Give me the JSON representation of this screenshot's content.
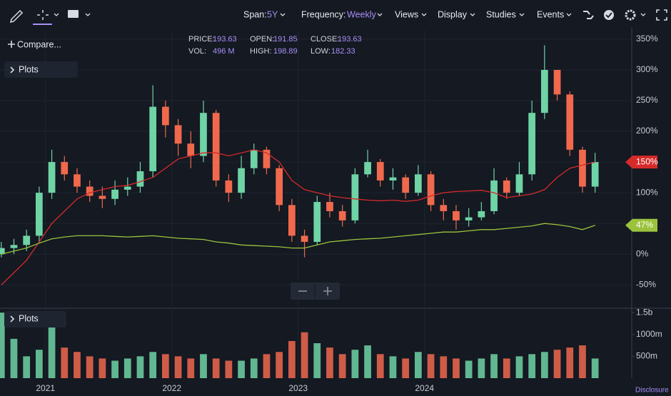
{
  "toolbar": {
    "span_label": "Span:",
    "span": "5Y",
    "frequency_label": "Frequency:",
    "frequency": "Weekly",
    "menus": [
      "Views",
      "Display",
      "Studies",
      "Events"
    ]
  },
  "side": {
    "compare": "Compare...",
    "plots": "Plots",
    "volume_plots": "Plots"
  },
  "info": {
    "price_label": "PRICE:",
    "price": "193.63",
    "open_label": "OPEN:",
    "open": "191.85",
    "close_label": "CLOSE:",
    "close": "193.63",
    "vol_label": "VOL:",
    "vol": "496 M",
    "high_label": "HIGH:",
    "high": "198.89",
    "low_label": "LOW:",
    "low": "182.33"
  },
  "disclosure": "Disclosure",
  "chart_data": {
    "type": "candlestick",
    "x": [
      2020.65,
      2020.75,
      2020.85,
      2020.95,
      2021.05,
      2021.15,
      2021.25,
      2021.35,
      2021.45,
      2021.55,
      2021.65,
      2021.75,
      2021.85,
      2021.95,
      2022.05,
      2022.15,
      2022.25,
      2022.35,
      2022.45,
      2022.55,
      2022.65,
      2022.75,
      2022.85,
      2022.95,
      2023.05,
      2023.15,
      2023.25,
      2023.35,
      2023.45,
      2023.55,
      2023.65,
      2023.75,
      2023.85,
      2023.95,
      2024.05,
      2024.15,
      2024.25,
      2024.35,
      2024.45,
      2024.55,
      2024.65,
      2024.75,
      2024.85,
      2024.95,
      2025.05,
      2025.15,
      2025.25,
      2025.35
    ],
    "open": [
      0,
      10,
      15,
      30,
      100,
      150,
      130,
      110,
      95,
      90,
      105,
      110,
      135,
      240,
      210,
      180,
      160,
      230,
      120,
      100,
      140,
      170,
      140,
      80,
      30,
      20,
      85,
      70,
      55,
      130,
      150,
      120,
      125,
      100,
      130,
      80,
      70,
      55,
      60,
      70,
      120,
      100,
      130,
      230,
      300,
      260,
      170,
      110
    ],
    "high": [
      20,
      25,
      40,
      110,
      170,
      160,
      140,
      120,
      110,
      120,
      125,
      150,
      275,
      250,
      220,
      200,
      250,
      235,
      130,
      160,
      180,
      175,
      145,
      90,
      40,
      95,
      100,
      80,
      140,
      170,
      155,
      140,
      130,
      145,
      135,
      90,
      80,
      75,
      85,
      140,
      125,
      150,
      250,
      340,
      300,
      265,
      175,
      165
    ],
    "low": [
      -5,
      0,
      5,
      20,
      90,
      120,
      100,
      85,
      75,
      80,
      95,
      100,
      125,
      190,
      160,
      140,
      150,
      110,
      85,
      90,
      130,
      130,
      70,
      20,
      -5,
      15,
      60,
      45,
      50,
      125,
      110,
      105,
      90,
      95,
      70,
      55,
      40,
      45,
      55,
      65,
      90,
      95,
      120,
      220,
      250,
      160,
      100,
      100
    ],
    "close": [
      10,
      15,
      30,
      100,
      150,
      130,
      110,
      95,
      90,
      105,
      110,
      135,
      240,
      210,
      180,
      160,
      230,
      120,
      100,
      140,
      170,
      140,
      80,
      30,
      20,
      85,
      70,
      55,
      130,
      150,
      120,
      125,
      100,
      130,
      80,
      70,
      55,
      60,
      70,
      120,
      100,
      130,
      230,
      300,
      260,
      170,
      110,
      150
    ],
    "up_color": "#6fd3a5",
    "down_color": "#f0694d",
    "series": [
      {
        "color": "#d62a2a",
        "values": [
          -50,
          -30,
          -10,
          20,
          50,
          70,
          90,
          100,
          105,
          110,
          112,
          118,
          125,
          140,
          155,
          160,
          165,
          165,
          160,
          165,
          170,
          165,
          150,
          120,
          105,
          100,
          95,
          92,
          90,
          88,
          87,
          88,
          86,
          88,
          95,
          100,
          102,
          103,
          104,
          100,
          92,
          95,
          98,
          105,
          125,
          140,
          145,
          150
        ],
        "tag": "150%"
      },
      {
        "color": "#9bc23c",
        "values": [
          0,
          5,
          10,
          18,
          25,
          28,
          30,
          30,
          30,
          29,
          28,
          29,
          30,
          28,
          26,
          25,
          24,
          20,
          18,
          15,
          14,
          13,
          12,
          10,
          10,
          15,
          20,
          22,
          24,
          25,
          26,
          28,
          30,
          32,
          34,
          36,
          36,
          38,
          40,
          40,
          42,
          44,
          46,
          50,
          48,
          45,
          40,
          47
        ],
        "tag": "47%"
      }
    ],
    "volume": [
      1500,
      900,
      500,
      650,
      1200,
      700,
      600,
      500,
      450,
      400,
      450,
      500,
      600,
      550,
      500,
      450,
      550,
      450,
      400,
      400,
      450,
      550,
      600,
      850,
      1050,
      800,
      700,
      550,
      650,
      750,
      550,
      500,
      450,
      600,
      550,
      500,
      450,
      400,
      450,
      550,
      450,
      500,
      550,
      600,
      650,
      700,
      750,
      450
    ],
    "xlim": [
      2020.64,
      2025.64
    ],
    "xticks": [
      2021,
      2022,
      2023,
      2024
    ],
    "ylim": [
      -88,
      365
    ],
    "yticks": [
      {
        "value": -50,
        "label": "-50%"
      },
      {
        "value": 0,
        "label": "0%"
      },
      {
        "value": 50,
        "label": "50%"
      },
      {
        "value": 100,
        "label": "100%"
      },
      {
        "value": 150,
        "label": "150%"
      },
      {
        "value": 200,
        "label": "200%"
      },
      {
        "value": 250,
        "label": "250%"
      },
      {
        "value": 300,
        "label": "300%"
      },
      {
        "value": 350,
        "label": "350%"
      }
    ],
    "volume_ylim": [
      0,
      1600
    ],
    "volume_ticks": [
      {
        "value": 500,
        "label": "500m"
      },
      {
        "value": 1000,
        "label": "1000m"
      },
      {
        "value": 1500,
        "label": "1.5b"
      }
    ],
    "grid": true
  }
}
